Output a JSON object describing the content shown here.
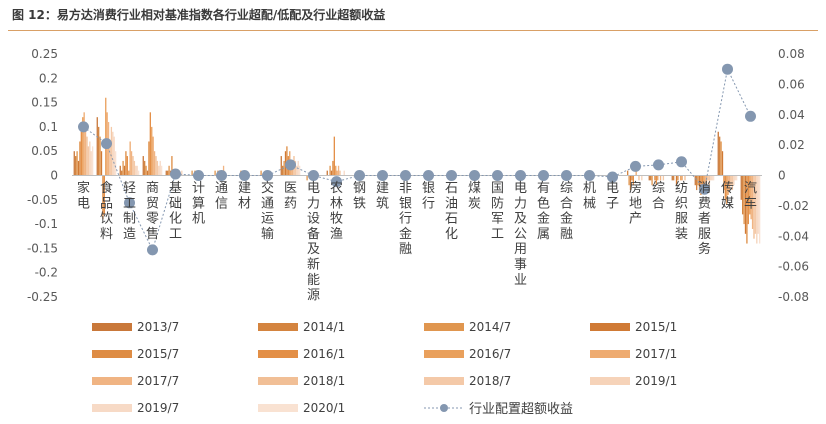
{
  "title": "图 12：易方达消费行业相对基准指数各行业超配/低配及行业超额收益",
  "chart_data": {
    "type": "bar",
    "categories": [
      "家电",
      "食品饮料",
      "轻工制造",
      "商贸零售",
      "基础化工",
      "计算机",
      "通信",
      "建材",
      "交通运输",
      "医药",
      "电力设备及新能源",
      "农林牧渔",
      "钢铁",
      "建筑",
      "非银行金融",
      "银行",
      "石油石化",
      "煤炭",
      "国防军工",
      "电力及公用事业",
      "有色金属",
      "综合金融",
      "机械",
      "电子",
      "房地产",
      "综合",
      "纺织服装",
      "消费者服务",
      "传媒",
      "汽车"
    ],
    "left_axis": {
      "min": -0.25,
      "max": 0.25,
      "step": 0.05,
      "ticks": [
        "0.25",
        "0.2",
        "0.15",
        "0.1",
        "0.05",
        "0",
        "-0.05",
        "-0.1",
        "-0.15",
        "-0.2",
        "-0.25"
      ]
    },
    "right_axis": {
      "min": -0.08,
      "max": 0.08,
      "step": 0.02,
      "ticks": [
        "0.08",
        "0.06",
        "0.04",
        "0.02",
        "0",
        "-0.02",
        "-0.04",
        "-0.06",
        "-0.08"
      ]
    },
    "bar_series": [
      {
        "name": "2013/7",
        "color": "#c9783a"
      },
      {
        "name": "2014/1",
        "color": "#d4843f"
      },
      {
        "name": "2014/7",
        "color": "#e0964f"
      },
      {
        "name": "2015/1",
        "color": "#d07a35"
      },
      {
        "name": "2015/7",
        "color": "#de8c44"
      },
      {
        "name": "2016/1",
        "color": "#e38f46"
      },
      {
        "name": "2016/7",
        "color": "#e9a05c"
      },
      {
        "name": "2017/1",
        "color": "#eeab70"
      },
      {
        "name": "2017/7",
        "color": "#f0b483"
      },
      {
        "name": "2018/1",
        "color": "#f1bf96"
      },
      {
        "name": "2018/7",
        "color": "#f4c9a8"
      },
      {
        "name": "2019/1",
        "color": "#f6d3b9"
      },
      {
        "name": "2019/7",
        "color": "#f7dac6"
      },
      {
        "name": "2020/1",
        "color": "#f9e2d2"
      }
    ],
    "bar_values": [
      [
        0.05,
        0.04,
        0.05,
        0.03,
        0.07,
        0.09,
        0.12,
        0.13,
        0.1,
        0.08,
        0.06,
        0.07,
        0.05,
        0.06
      ],
      [
        0.12,
        0.1,
        0.08,
        0.05,
        -0.09,
        -0.08,
        0.16,
        0.13,
        0.11,
        0.07,
        0.1,
        0.09,
        0.08,
        0.05
      ],
      [
        0.02,
        0.01,
        0.03,
        0.02,
        0.05,
        0.04,
        0.01,
        0.07,
        0.05,
        0.04,
        0.03,
        0.02,
        0.02,
        0.01
      ],
      [
        0.04,
        0.03,
        0.02,
        0.01,
        0.07,
        0.13,
        0.1,
        0.08,
        0.05,
        0.04,
        0.03,
        0.02,
        0.03,
        0.02
      ],
      [
        0.01,
        0.01,
        0.02,
        0.01,
        0.04,
        0.01,
        0.01,
        0.01,
        0.01,
        0.0,
        0.0,
        0.01,
        0.0,
        0.0
      ],
      [
        0.0,
        0.0,
        0.01,
        0.0,
        0.01,
        0.0,
        0.0,
        0.01,
        0.0,
        0.0,
        0.0,
        0.0,
        0.0,
        0.0
      ],
      [
        0.0,
        0.0,
        0.01,
        0.0,
        0.01,
        0.0,
        0.0,
        0.0,
        0.02,
        0.0,
        0.0,
        0.0,
        0.0,
        0.0
      ],
      [
        0.0,
        0.0,
        0.0,
        0.0,
        0.01,
        0.0,
        0.0,
        0.0,
        0.0,
        0.0,
        0.0,
        0.0,
        0.0,
        0.0
      ],
      [
        0.0,
        0.0,
        0.01,
        0.0,
        0.0,
        0.0,
        0.0,
        0.0,
        0.01,
        0.0,
        0.0,
        0.0,
        0.0,
        0.0
      ],
      [
        0.04,
        0.02,
        0.03,
        0.05,
        0.06,
        0.04,
        0.05,
        0.03,
        0.02,
        0.04,
        0.03,
        0.02,
        0.03,
        0.02
      ],
      [
        0.0,
        0.0,
        -0.01,
        0.0,
        0.0,
        0.0,
        0.0,
        0.0,
        0.01,
        0.0,
        0.0,
        0.0,
        0.0,
        0.0
      ],
      [
        0.01,
        0.0,
        0.02,
        0.01,
        0.03,
        0.08,
        0.02,
        0.01,
        0.02,
        0.01,
        0.0,
        0.0,
        0.01,
        0.0
      ],
      [
        0.0,
        0.0,
        0.0,
        0.0,
        0.0,
        0.0,
        0.0,
        0.0,
        0.0,
        0.0,
        0.0,
        0.0,
        0.0,
        0.0
      ],
      [
        0.0,
        0.0,
        0.0,
        0.0,
        0.0,
        0.0,
        0.0,
        0.0,
        0.0,
        0.0,
        0.0,
        0.0,
        0.0,
        0.0
      ],
      [
        0.0,
        0.0,
        0.0,
        0.0,
        0.0,
        0.0,
        0.0,
        0.0,
        0.0,
        0.0,
        0.0,
        0.0,
        0.0,
        0.0
      ],
      [
        0.0,
        0.0,
        0.0,
        0.0,
        0.0,
        0.0,
        0.0,
        0.0,
        0.0,
        0.0,
        0.0,
        0.0,
        0.0,
        0.0
      ],
      [
        0.0,
        0.0,
        0.0,
        0.0,
        0.0,
        0.0,
        0.0,
        0.0,
        0.0,
        0.0,
        0.0,
        0.0,
        0.0,
        0.0
      ],
      [
        0.0,
        0.0,
        0.0,
        0.0,
        0.0,
        0.0,
        0.0,
        0.0,
        0.0,
        0.0,
        0.0,
        0.0,
        0.0,
        0.0
      ],
      [
        0.0,
        0.0,
        0.0,
        0.0,
        0.0,
        0.0,
        0.0,
        0.0,
        0.0,
        0.0,
        0.0,
        0.0,
        0.0,
        0.0
      ],
      [
        0.0,
        0.0,
        0.0,
        0.0,
        0.0,
        0.0,
        0.0,
        0.0,
        0.0,
        0.0,
        0.0,
        0.0,
        0.0,
        0.0
      ],
      [
        0.0,
        0.0,
        0.0,
        0.0,
        0.0,
        0.0,
        0.0,
        0.0,
        0.0,
        0.0,
        0.0,
        0.0,
        0.0,
        0.0
      ],
      [
        0.0,
        0.0,
        0.0,
        0.0,
        0.0,
        0.0,
        0.0,
        0.0,
        0.0,
        0.0,
        0.0,
        0.0,
        0.0,
        0.0
      ],
      [
        0.0,
        0.0,
        0.0,
        0.0,
        0.0,
        0.0,
        0.0,
        0.0,
        0.0,
        0.0,
        0.0,
        0.0,
        0.0,
        0.0
      ],
      [
        0.0,
        0.0,
        0.0,
        0.0,
        0.0,
        0.0,
        0.0,
        0.0,
        -0.01,
        0.0,
        0.0,
        0.0,
        0.0,
        0.0
      ],
      [
        0.0,
        0.01,
        -0.02,
        -0.03,
        -0.01,
        -0.02,
        0.0,
        0.01,
        0.0,
        -0.01,
        0.0,
        -0.01,
        0.0,
        0.0
      ],
      [
        -0.01,
        -0.01,
        -0.02,
        0.0,
        -0.01,
        -0.02,
        -0.01,
        0.0,
        -0.01,
        0.0,
        -0.01,
        0.0,
        0.0,
        0.0
      ],
      [
        -0.01,
        -0.01,
        0.0,
        -0.02,
        -0.01,
        0.0,
        -0.01,
        -0.01,
        0.0,
        -0.01,
        0.0,
        0.0,
        0.0,
        0.0
      ],
      [
        -0.02,
        -0.03,
        -0.02,
        -0.03,
        -0.04,
        -0.03,
        -0.02,
        -0.03,
        -0.02,
        -0.01,
        -0.02,
        -0.01,
        -0.01,
        -0.01
      ],
      [
        0.09,
        0.08,
        0.07,
        0.05,
        -0.03,
        -0.05,
        -0.06,
        -0.04,
        -0.03,
        -0.02,
        -0.03,
        -0.02,
        -0.01,
        -0.01
      ],
      [
        -0.05,
        -0.08,
        -0.1,
        -0.12,
        -0.14,
        -0.1,
        -0.08,
        -0.09,
        -0.11,
        -0.13,
        -0.12,
        -0.14,
        -0.12,
        -0.14
      ]
    ],
    "line_series": {
      "name": "行业配置超额收益",
      "color": "#8497b0",
      "values": [
        0.032,
        0.021,
        -0.018,
        -0.049,
        0.001,
        0.0,
        0.0,
        0.0,
        0.0,
        0.007,
        0.0,
        -0.004,
        0.0,
        0.0,
        0.0,
        0.0,
        0.0,
        0.0,
        0.0,
        0.0,
        0.0,
        0.0,
        0.0,
        -0.001,
        0.006,
        0.007,
        0.009,
        -0.009,
        0.07,
        0.039
      ]
    }
  }
}
